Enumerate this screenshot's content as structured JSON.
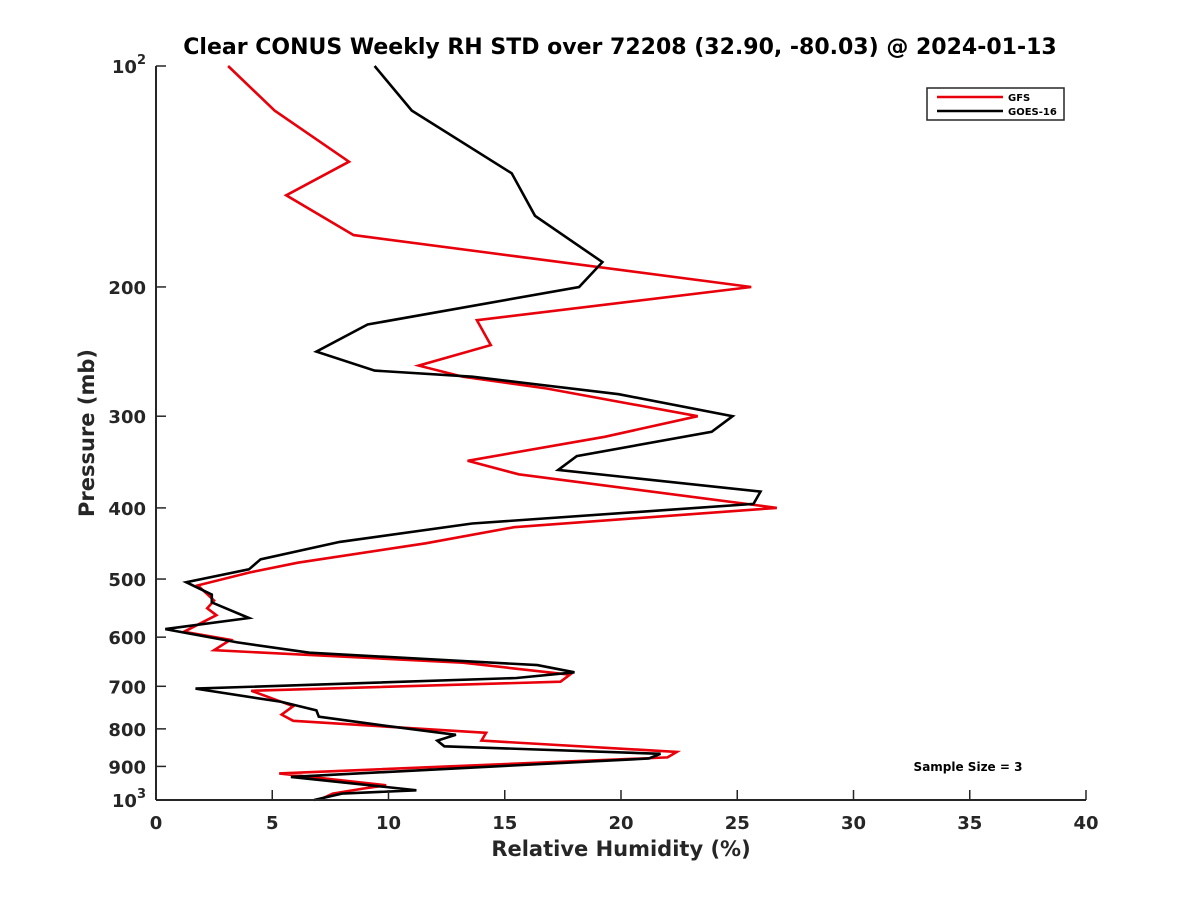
{
  "chart_data": {
    "type": "line",
    "title": "Clear CONUS Weekly RH STD over 72208 (32.90, -80.03) @ 2024-01-13",
    "xlabel": "Relative Humidity (%)",
    "ylabel": "Pressure (mb)",
    "xlim": [
      0,
      40
    ],
    "ylim": [
      100,
      1000
    ],
    "y_scale": "log",
    "y_reversed": true,
    "x_ticks": [
      0,
      5,
      10,
      15,
      20,
      25,
      30,
      35,
      40
    ],
    "x_tick_labels": [
      "0",
      "5",
      "10",
      "15",
      "20",
      "25",
      "30",
      "35",
      "40"
    ],
    "y_ticks": [
      100,
      200,
      300,
      400,
      500,
      600,
      700,
      800,
      900,
      1000
    ],
    "y_tick_labels": [
      {
        "base": "10",
        "exp": "2"
      },
      {
        "base": "200",
        "exp": ""
      },
      {
        "base": "300",
        "exp": ""
      },
      {
        "base": "400",
        "exp": ""
      },
      {
        "base": "500",
        "exp": ""
      },
      {
        "base": "600",
        "exp": ""
      },
      {
        "base": "700",
        "exp": ""
      },
      {
        "base": "800",
        "exp": ""
      },
      {
        "base": "900",
        "exp": ""
      },
      {
        "base": "10",
        "exp": "3"
      }
    ],
    "grid": false,
    "legend_position": "top-right",
    "annotation": "Sample Size = 3",
    "series": [
      {
        "name": "GFS",
        "color": "#e8000b",
        "points": [
          [
            3.1,
            100
          ],
          [
            5.1,
            115
          ],
          [
            8.3,
            135
          ],
          [
            5.6,
            150
          ],
          [
            8.5,
            170
          ],
          [
            25.6,
            200
          ],
          [
            13.8,
            222
          ],
          [
            14.4,
            240
          ],
          [
            11.3,
            256
          ],
          [
            13.2,
            265
          ],
          [
            16.8,
            275
          ],
          [
            23.3,
            300
          ],
          [
            19.3,
            320
          ],
          [
            13.4,
            345
          ],
          [
            15.6,
            360
          ],
          [
            26.7,
            400
          ],
          [
            15.4,
            425
          ],
          [
            11.6,
            447
          ],
          [
            6.1,
            475
          ],
          [
            4.0,
            490
          ],
          [
            1.8,
            510
          ],
          [
            2.5,
            535
          ],
          [
            2.2,
            548
          ],
          [
            2.6,
            560
          ],
          [
            1.2,
            590
          ],
          [
            3.2,
            605
          ],
          [
            2.5,
            625
          ],
          [
            13.2,
            650
          ],
          [
            17.8,
            675
          ],
          [
            17.4,
            690
          ],
          [
            4.1,
            710
          ],
          [
            5.9,
            745
          ],
          [
            5.4,
            765
          ],
          [
            5.9,
            780
          ],
          [
            14.2,
            810
          ],
          [
            14.0,
            830
          ],
          [
            22.4,
            860
          ],
          [
            22.0,
            875
          ],
          [
            5.3,
            920
          ],
          [
            9.9,
            955
          ],
          [
            8.9,
            965
          ],
          [
            7.6,
            980
          ],
          [
            7.0,
            1000
          ]
        ]
      },
      {
        "name": "GOES-16",
        "color": "#000000",
        "points": [
          [
            9.4,
            100
          ],
          [
            11.0,
            115
          ],
          [
            15.3,
            140
          ],
          [
            16.3,
            160
          ],
          [
            19.2,
            185
          ],
          [
            18.2,
            200
          ],
          [
            9.1,
            225
          ],
          [
            6.9,
            245
          ],
          [
            9.4,
            260
          ],
          [
            13.6,
            265
          ],
          [
            19.9,
            280
          ],
          [
            24.8,
            300
          ],
          [
            23.9,
            315
          ],
          [
            18.1,
            340
          ],
          [
            17.3,
            355
          ],
          [
            26.0,
            380
          ],
          [
            25.7,
            395
          ],
          [
            13.6,
            420
          ],
          [
            7.9,
            445
          ],
          [
            4.5,
            470
          ],
          [
            4.0,
            485
          ],
          [
            1.3,
            505
          ],
          [
            2.4,
            525
          ],
          [
            2.4,
            538
          ],
          [
            4.0,
            565
          ],
          [
            0.4,
            585
          ],
          [
            3.5,
            610
          ],
          [
            6.6,
            630
          ],
          [
            16.4,
            655
          ],
          [
            18.0,
            670
          ],
          [
            15.5,
            682
          ],
          [
            1.7,
            705
          ],
          [
            5.4,
            735
          ],
          [
            6.9,
            755
          ],
          [
            7.0,
            770
          ],
          [
            9.6,
            790
          ],
          [
            12.9,
            815
          ],
          [
            12.1,
            830
          ],
          [
            12.4,
            845
          ],
          [
            21.7,
            865
          ],
          [
            21.2,
            878
          ],
          [
            5.8,
            930
          ],
          [
            9.9,
            960
          ],
          [
            11.2,
            970
          ],
          [
            8.0,
            980
          ],
          [
            6.8,
            1000
          ]
        ]
      }
    ]
  }
}
